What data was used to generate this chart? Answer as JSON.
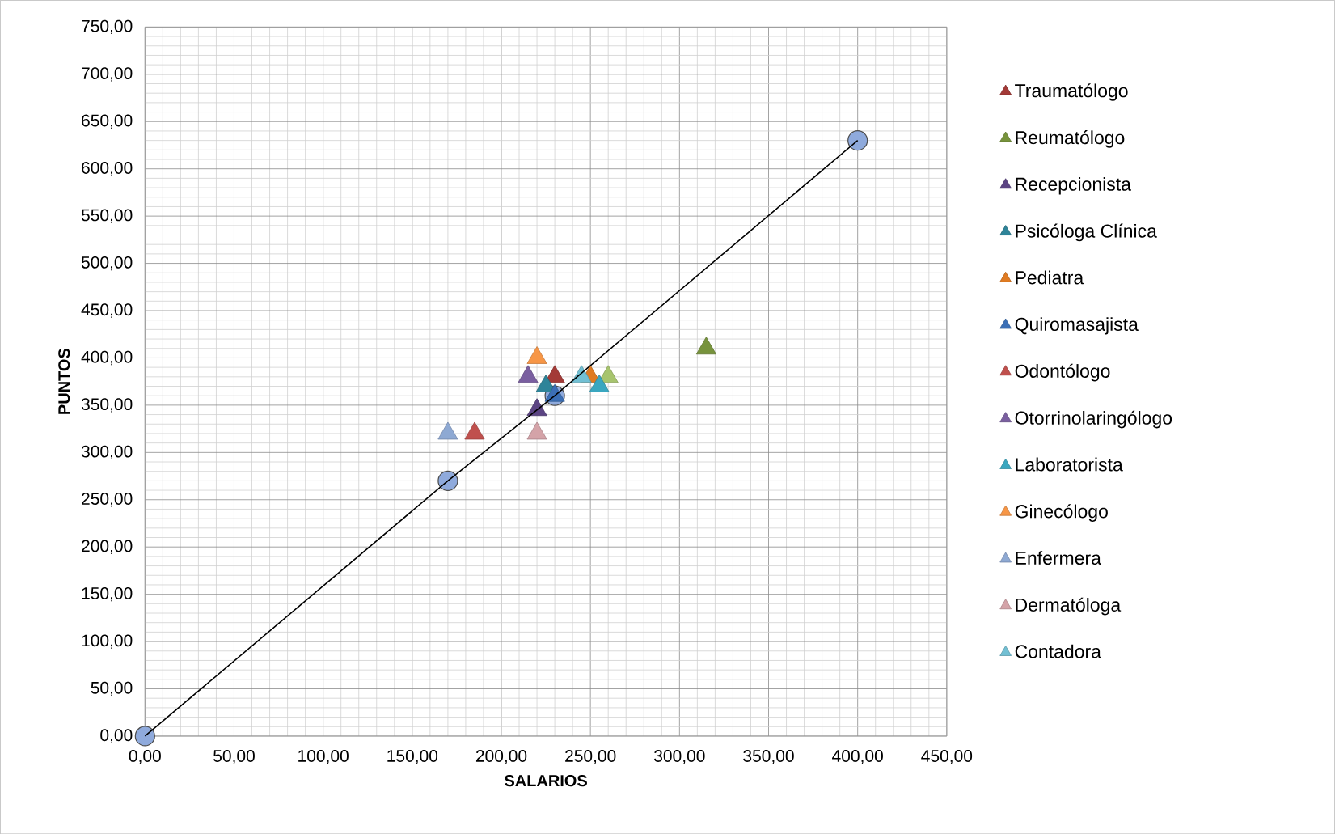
{
  "chart_data": {
    "type": "scatter",
    "xlabel": "SALARIOS",
    "ylabel": "PUNTOS",
    "xlim": [
      0,
      450
    ],
    "ylim": [
      0,
      750
    ],
    "xticks": [
      {
        "value": 0,
        "label": "0,00"
      },
      {
        "value": 50,
        "label": "50,00"
      },
      {
        "value": 100,
        "label": "100,00"
      },
      {
        "value": 150,
        "label": "150,00"
      },
      {
        "value": 200,
        "label": "200,00"
      },
      {
        "value": 250,
        "label": "250,00"
      },
      {
        "value": 300,
        "label": "300,00"
      },
      {
        "value": 350,
        "label": "350,00"
      },
      {
        "value": 400,
        "label": "400,00"
      },
      {
        "value": 450,
        "label": "450,00"
      }
    ],
    "yticks": [
      {
        "value": 0,
        "label": "0,00"
      },
      {
        "value": 50,
        "label": "50,00"
      },
      {
        "value": 100,
        "label": "100,00"
      },
      {
        "value": 150,
        "label": "150,00"
      },
      {
        "value": 200,
        "label": "200,00"
      },
      {
        "value": 250,
        "label": "250,00"
      },
      {
        "value": 300,
        "label": "300,00"
      },
      {
        "value": 350,
        "label": "350,00"
      },
      {
        "value": 400,
        "label": "400,00"
      },
      {
        "value": 450,
        "label": "450,00"
      },
      {
        "value": 500,
        "label": "500,00"
      },
      {
        "value": 550,
        "label": "550,00"
      },
      {
        "value": 600,
        "label": "600,00"
      },
      {
        "value": 650,
        "label": "650,00"
      },
      {
        "value": 700,
        "label": "700,00"
      },
      {
        "value": 750,
        "label": "750,00"
      }
    ],
    "grid": true,
    "legend": "right",
    "marker": "triangle",
    "series": [
      {
        "name": "Traumatólogo",
        "color": "#a33a37",
        "x": [
          230
        ],
        "values": [
          380
        ]
      },
      {
        "name": "Reumatólogo",
        "color": "#77933c",
        "colors": [
          "#77933c",
          "#a7c46e"
        ],
        "x": [
          315,
          260
        ],
        "values": [
          410,
          380
        ]
      },
      {
        "name": "Recepcionista",
        "color": "#5b4483",
        "x": [
          220
        ],
        "values": [
          345
        ]
      },
      {
        "name": "Psicóloga Clínica",
        "color": "#2e8499",
        "x": [
          225
        ],
        "values": [
          370
        ]
      },
      {
        "name": "Pediatra",
        "color": "#e07b22",
        "x": [
          250
        ],
        "values": [
          380
        ]
      },
      {
        "name": "Quiromasajista",
        "color": "#3b6fb6",
        "x": [
          230
        ],
        "values": [
          360
        ]
      },
      {
        "name": "Odontólogo",
        "color": "#c0504d",
        "x": [
          185
        ],
        "values": [
          320
        ]
      },
      {
        "name": "Otorrinolaringólogo",
        "color": "#7a5fa0",
        "x": [
          215
        ],
        "values": [
          380
        ]
      },
      {
        "name": "Laboratorista",
        "color": "#3aa7c0",
        "x": [
          255
        ],
        "values": [
          370
        ]
      },
      {
        "name": "Ginecólogo",
        "color": "#f79646",
        "x": [
          220
        ],
        "values": [
          400
        ]
      },
      {
        "name": "Enfermera",
        "color": "#8ea9d3",
        "x": [
          170
        ],
        "values": [
          320
        ]
      },
      {
        "name": "Dermatóloga",
        "color": "#d4a3a8",
        "x": [
          220
        ],
        "values": [
          320
        ]
      },
      {
        "name": "Contadora",
        "color": "#72c0d4",
        "x": [
          245
        ],
        "values": [
          380
        ]
      },
      {
        "type": "line",
        "marker": "circle",
        "color": "#8faadc",
        "x": [
          0,
          170,
          230,
          400
        ],
        "values": [
          0,
          270,
          360,
          630
        ]
      }
    ]
  }
}
